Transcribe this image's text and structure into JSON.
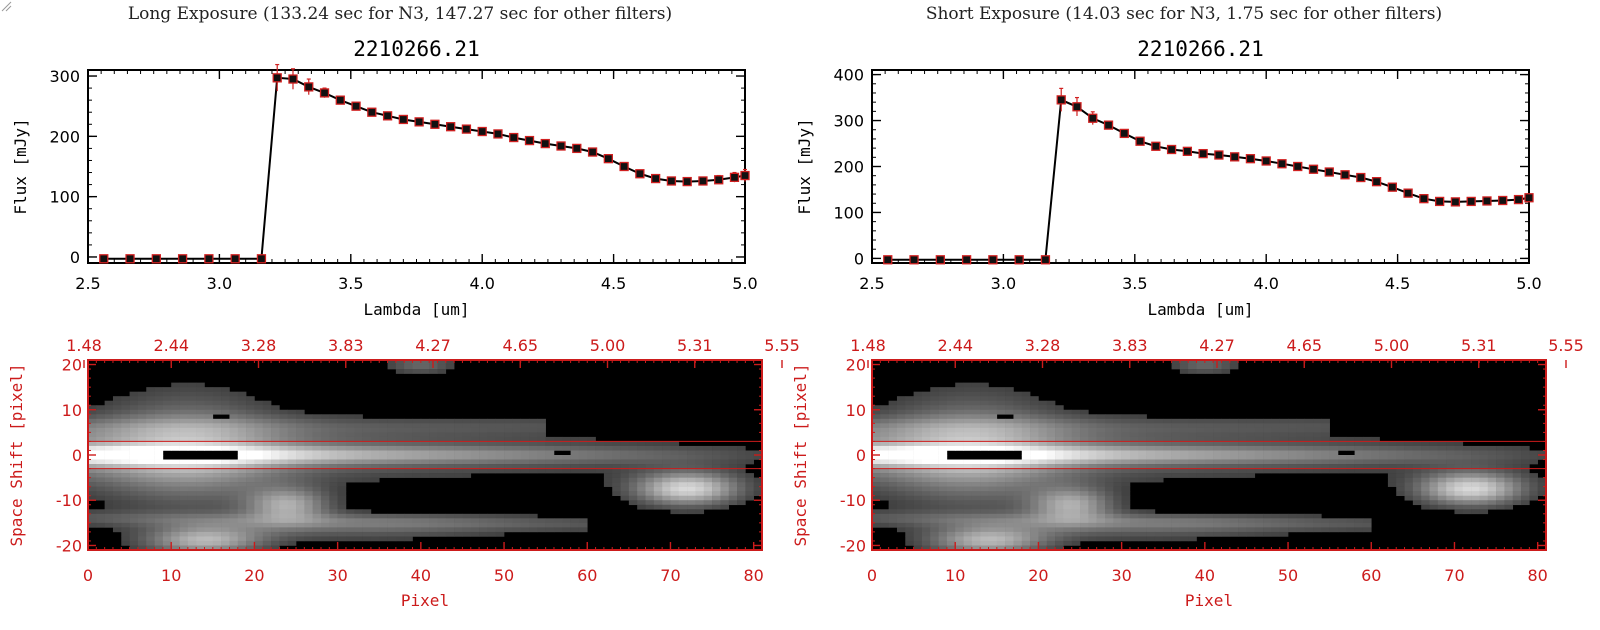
{
  "colors": {
    "axis_black": "#000000",
    "accent_red": "#cc1b1b",
    "marker_red": "#d02020",
    "image_background": "#000000"
  },
  "panels": [
    {
      "heading": "Long Exposure (133.24 sec for N3, 147.27 sec for other filters)",
      "chart_data": [
        {
          "type": "line",
          "title": "2210266.21",
          "xlabel": "Lambda [um]",
          "ylabel": "Flux [mJy]",
          "xlim": [
            2.5,
            5.0
          ],
          "ylim": [
            -10,
            310
          ],
          "xticks": [
            "2.5",
            "3.0",
            "3.5",
            "4.0",
            "4.5",
            "5.0"
          ],
          "yticks": [
            "0",
            "100",
            "200",
            "300"
          ],
          "x": [
            2.56,
            2.66,
            2.76,
            2.86,
            2.96,
            3.06,
            3.16,
            3.22,
            3.28,
            3.34,
            3.4,
            3.46,
            3.52,
            3.58,
            3.64,
            3.7,
            3.76,
            3.82,
            3.88,
            3.94,
            4.0,
            4.06,
            4.12,
            4.18,
            4.24,
            4.3,
            4.36,
            4.42,
            4.48,
            4.54,
            4.6,
            4.66,
            4.72,
            4.78,
            4.84,
            4.9,
            4.96,
            5.0
          ],
          "series": [
            {
              "values": [
                -3,
                -3,
                -3,
                -3,
                -3,
                -3,
                -3,
                297,
                295,
                282,
                272,
                260,
                250,
                240,
                234,
                228,
                224,
                220,
                216,
                212,
                208,
                204,
                198,
                193,
                188,
                184,
                180,
                174,
                163,
                150,
                138,
                130,
                126,
                125,
                126,
                128,
                132,
                135
              ],
              "errors": [
                0,
                0,
                0,
                0,
                0,
                0,
                0,
                22,
                17,
                13,
                8,
                5,
                4,
                3,
                3,
                3,
                3,
                3,
                3,
                3,
                3,
                3,
                3,
                3,
                3,
                3,
                3,
                3,
                3,
                3,
                3,
                3,
                5,
                6,
                6,
                7,
                8,
                10
              ]
            }
          ]
        },
        {
          "type": "heatmap",
          "xlabel": "Pixel",
          "ylabel": "Space Shift [pixel]",
          "xlim": [
            0,
            81
          ],
          "ylim": [
            -21,
            21
          ],
          "xticks": [
            "0",
            "10",
            "20",
            "30",
            "40",
            "50",
            "60",
            "70",
            "80"
          ],
          "yticks": [
            "-20",
            "-10",
            "0",
            "10",
            "20"
          ],
          "top_axis_ticks": [
            "1.48",
            "2.44",
            "3.28",
            "3.83",
            "4.27",
            "4.65",
            "5.00",
            "5.31",
            "5.55"
          ],
          "aperture_rows": [
            -3,
            3
          ]
        }
      ]
    },
    {
      "heading": "Short Exposure (14.03 sec for N3, 1.75 sec for other filters)",
      "chart_data": [
        {
          "type": "line",
          "title": "2210266.21",
          "xlabel": "Lambda [um]",
          "ylabel": "Flux [mJy]",
          "xlim": [
            2.5,
            5.0
          ],
          "ylim": [
            -10,
            410
          ],
          "xticks": [
            "2.5",
            "3.0",
            "3.5",
            "4.0",
            "4.5",
            "5.0"
          ],
          "yticks": [
            "0",
            "100",
            "200",
            "300",
            "400"
          ],
          "x": [
            2.56,
            2.66,
            2.76,
            2.86,
            2.96,
            3.06,
            3.16,
            3.22,
            3.28,
            3.34,
            3.4,
            3.46,
            3.52,
            3.58,
            3.64,
            3.7,
            3.76,
            3.82,
            3.88,
            3.94,
            4.0,
            4.06,
            4.12,
            4.18,
            4.24,
            4.3,
            4.36,
            4.42,
            4.48,
            4.54,
            4.6,
            4.66,
            4.72,
            4.78,
            4.84,
            4.9,
            4.96,
            5.0
          ],
          "series": [
            {
              "values": [
                -3,
                -3,
                -3,
                -3,
                -3,
                -3,
                -3,
                345,
                330,
                305,
                290,
                272,
                255,
                244,
                237,
                233,
                228,
                225,
                221,
                217,
                212,
                206,
                200,
                194,
                188,
                182,
                176,
                167,
                155,
                142,
                130,
                124,
                123,
                124,
                125,
                126,
                128,
                132
              ],
              "errors": [
                0,
                0,
                0,
                0,
                0,
                0,
                0,
                25,
                20,
                14,
                8,
                6,
                4,
                3,
                3,
                3,
                3,
                3,
                3,
                3,
                3,
                3,
                3,
                3,
                3,
                3,
                3,
                3,
                3,
                3,
                3,
                3,
                3,
                3,
                3,
                3,
                4,
                5
              ]
            }
          ]
        },
        {
          "type": "heatmap",
          "xlabel": "Pixel",
          "ylabel": "Space Shift [pixel]",
          "xlim": [
            0,
            81
          ],
          "ylim": [
            -21,
            21
          ],
          "xticks": [
            "0",
            "10",
            "20",
            "30",
            "40",
            "50",
            "60",
            "70",
            "80"
          ],
          "yticks": [
            "-20",
            "-10",
            "0",
            "10",
            "20"
          ],
          "top_axis_ticks": [
            "1.48",
            "2.44",
            "3.28",
            "3.83",
            "4.27",
            "4.65",
            "5.00",
            "5.31",
            "5.55"
          ],
          "aperture_rows": [
            -3,
            3
          ]
        }
      ]
    }
  ]
}
